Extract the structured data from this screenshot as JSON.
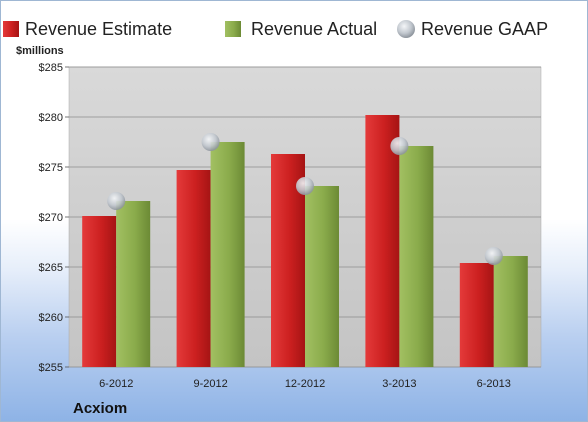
{
  "chart_data": {
    "type": "bar",
    "title": "",
    "company": "Acxiom",
    "ylabel": "$millions",
    "xlabel": "",
    "categories": [
      "6-2012",
      "9-2012",
      "12-2012",
      "3-2013",
      "6-2013"
    ],
    "ylim": [
      255,
      285
    ],
    "yticks": [
      255,
      260,
      265,
      270,
      275,
      280,
      285
    ],
    "ytick_labels": [
      "$255",
      "$260",
      "$265",
      "$270",
      "$275",
      "$280",
      "$285"
    ],
    "grid": true,
    "legend_position": "top",
    "series": [
      {
        "name": "Revenue Estimate",
        "type": "bar",
        "color": "#cc2222",
        "values": [
          270.1,
          274.7,
          276.3,
          280.2,
          265.4
        ]
      },
      {
        "name": "Revenue Actual",
        "type": "bar",
        "color": "#8aab4b",
        "values": [
          271.6,
          277.5,
          273.1,
          277.1,
          266.1
        ]
      },
      {
        "name": "Revenue GAAP",
        "type": "marker",
        "color": "#b8bfc8",
        "values": [
          271.6,
          277.5,
          273.1,
          277.1,
          266.1
        ]
      }
    ]
  }
}
